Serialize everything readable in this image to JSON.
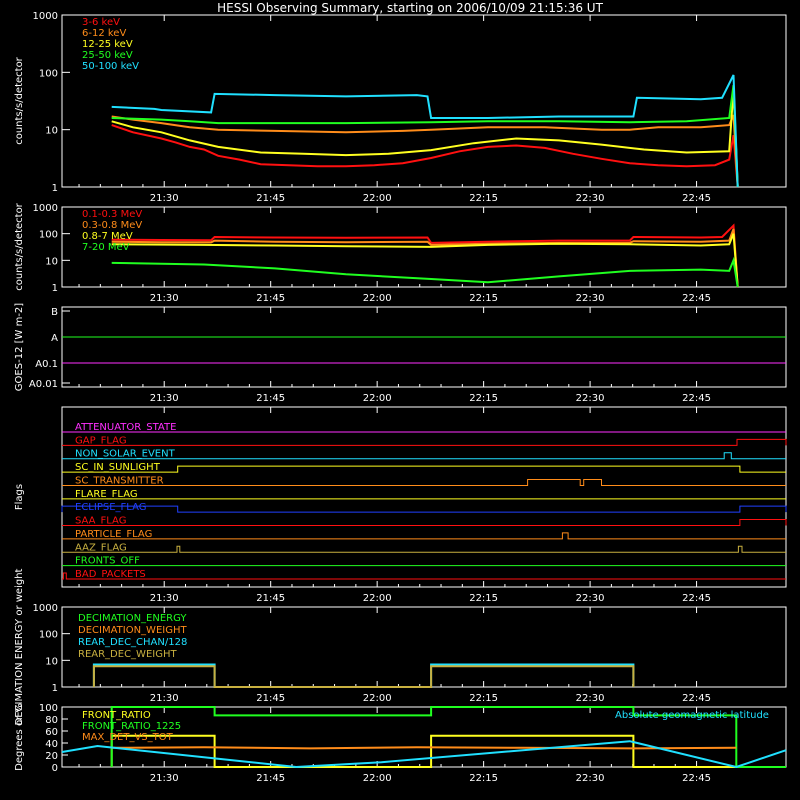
{
  "title": "HESSI Observing Summary, starting on 2006/10/09 21:15:36 UT",
  "time_ticks": [
    "21:30",
    "21:45",
    "22:00",
    "22:15",
    "22:30",
    "22:45"
  ],
  "chart_data": [
    {
      "type": "line",
      "name": "panel-hxr-low",
      "ylabel": "counts/s/detector",
      "yscale": "log",
      "ylim": [
        1,
        1000
      ],
      "y_ticks": [
        "1",
        "10",
        "100",
        "1000"
      ],
      "x_unit": "minutes after 21:15:36 UT",
      "x_range": [
        0,
        102
      ],
      "series": [
        {
          "name": "3-6 keV",
          "color": "#ff1010",
          "x": [
            7,
            10,
            14,
            16,
            18,
            20,
            22,
            25,
            28,
            32,
            36,
            40,
            44,
            48,
            52,
            56,
            60,
            64,
            68,
            72,
            76,
            80,
            84,
            88,
            92,
            94,
            94.6,
            95.2
          ],
          "y": [
            12,
            9,
            7,
            6,
            5,
            4.5,
            3.5,
            3,
            2.5,
            2.4,
            2.3,
            2.3,
            2.4,
            2.6,
            3.2,
            4.2,
            5,
            5.3,
            4.8,
            3.8,
            3.1,
            2.6,
            2.4,
            2.3,
            2.4,
            3,
            8,
            1
          ]
        },
        {
          "name": "6-12 keV",
          "color": "#ff8c1a",
          "x": [
            7,
            10,
            14,
            18,
            22,
            30,
            40,
            48,
            52,
            60,
            68,
            76,
            80,
            84,
            90,
            94,
            94.6,
            95.2
          ],
          "y": [
            17,
            15,
            13,
            11,
            10,
            9.5,
            9,
            9.5,
            10,
            11,
            11,
            10,
            10,
            11,
            11,
            12,
            18,
            1
          ]
        },
        {
          "name": "12-25 keV",
          "color": "#ffff20",
          "x": [
            7,
            10,
            14,
            18,
            22,
            28,
            34,
            40,
            46,
            52,
            58,
            64,
            70,
            76,
            82,
            88,
            94,
            94.6,
            95.2
          ],
          "y": [
            14,
            11,
            9,
            6.5,
            5,
            4,
            3.8,
            3.6,
            3.8,
            4.4,
            5.8,
            7,
            6.5,
            5.5,
            4.5,
            4,
            4.2,
            50,
            1
          ]
        },
        {
          "name": "25-50 keV",
          "color": "#20ff20",
          "x": [
            7,
            14,
            18,
            22,
            30,
            40,
            52,
            60,
            70,
            80,
            88,
            94,
            94.6,
            95.2
          ],
          "y": [
            16,
            15,
            14,
            13,
            13,
            13,
            13.5,
            14,
            14,
            13.5,
            14,
            16,
            60,
            1
          ]
        },
        {
          "name": "50-100 keV",
          "color": "#20e0ff",
          "x": [
            7,
            13,
            14,
            21,
            21.5,
            30,
            40,
            50,
            51.5,
            52,
            60,
            70,
            80,
            80.5,
            81,
            90,
            93,
            94.6,
            95.2
          ],
          "y": [
            25,
            23,
            22,
            20,
            42,
            40,
            38,
            40,
            38,
            16,
            16,
            17,
            17,
            17,
            36,
            34,
            36,
            90,
            1
          ]
        }
      ]
    },
    {
      "type": "line",
      "name": "panel-gamma",
      "ylabel": "counts/s/detector",
      "yscale": "log",
      "ylim": [
        1,
        1000
      ],
      "y_ticks": [
        "1",
        "10",
        "100",
        "1000"
      ],
      "x_unit": "minutes after 21:15:36 UT",
      "x_range": [
        0,
        102
      ],
      "series": [
        {
          "name": "0.1-0.3 MeV",
          "color": "#ff1010",
          "x": [
            7,
            14,
            21,
            21.5,
            30,
            40,
            51.5,
            52,
            60,
            70,
            80,
            80.5,
            90,
            93,
            94.6,
            95.2
          ],
          "y": [
            60,
            58,
            57,
            75,
            72,
            70,
            72,
            45,
            50,
            55,
            55,
            75,
            72,
            75,
            200,
            1
          ]
        },
        {
          "name": "0.3-0.8 MeV",
          "color": "#ff8c1a",
          "x": [
            7,
            14,
            21,
            21.5,
            30,
            40,
            51.5,
            52,
            60,
            70,
            80,
            80.5,
            90,
            94,
            94.6,
            95.2
          ],
          "y": [
            50,
            48,
            47,
            55,
            50,
            48,
            50,
            38,
            42,
            45,
            45,
            52,
            50,
            55,
            150,
            1
          ]
        },
        {
          "name": "0.8-7 MeV",
          "color": "#ffff20",
          "x": [
            7,
            20,
            30,
            40,
            52,
            60,
            70,
            80,
            90,
            94,
            94.6,
            95.2
          ],
          "y": [
            40,
            38,
            36,
            34,
            32,
            38,
            42,
            40,
            36,
            40,
            100,
            1
          ]
        },
        {
          "name": "7-20 MeV",
          "color": "#20ff20",
          "x": [
            7,
            14,
            20,
            30,
            40,
            52,
            60,
            70,
            80,
            90,
            94,
            94.6,
            95.2
          ],
          "y": [
            8,
            7.5,
            7,
            5,
            3,
            2,
            1.5,
            2.5,
            4,
            4.5,
            4,
            10,
            1
          ]
        }
      ]
    },
    {
      "type": "line",
      "name": "panel-goes",
      "ylabel": "GOES-12 [W m-2]",
      "yscale": "log",
      "y_ticks": [
        "A0.01",
        "A0.1",
        "A",
        "B"
      ],
      "x_unit": "minutes after 21:15:36 UT",
      "x_range": [
        0,
        102
      ],
      "series": [
        {
          "name": "GOES long",
          "color": "#20ff20",
          "x": [
            0,
            102
          ],
          "y": [
            "A",
            "A"
          ]
        },
        {
          "name": "GOES short",
          "color": "#ff30ff",
          "x": [
            0,
            102
          ],
          "y": [
            "A0.1",
            "A0.1"
          ]
        }
      ]
    },
    {
      "type": "line",
      "name": "panel-flags",
      "ylabel": "Flags",
      "x_unit": "minutes after 21:15:36 UT",
      "x_range": [
        0,
        102
      ],
      "series": [
        {
          "name": "ATTENUATOR_STATE",
          "color": "#ff30ff",
          "segments": []
        },
        {
          "name": "GAP_FLAG",
          "color": "#ff1010",
          "segments": [
            [
              95.1,
              102
            ]
          ]
        },
        {
          "name": "NON_SOLAR_EVENT",
          "color": "#20e0ff",
          "segments": [
            [
              93.3,
              94.3
            ]
          ]
        },
        {
          "name": "SC_IN_SUNLIGHT",
          "color": "#ffff20",
          "segments": [
            [
              16.3,
              95.5
            ]
          ]
        },
        {
          "name": "SC_TRANSMITTER",
          "color": "#ff8c1a",
          "segments": [
            [
              65.6,
              73
            ],
            [
              73.5,
              76
            ]
          ]
        },
        {
          "name": "FLARE_FLAG",
          "color": "#ffff20",
          "segments": []
        },
        {
          "name": "ECLIPSE_FLAG",
          "color": "#2040ff",
          "segments": [
            [
              0,
              16.3
            ],
            [
              95.5,
              102
            ]
          ]
        },
        {
          "name": "SAA_FLAG",
          "color": "#ff1010",
          "segments": [
            [
              95.5,
              102
            ]
          ]
        },
        {
          "name": "PARTICLE_FLAG",
          "color": "#ff8c1a",
          "segments": [
            [
              70.5,
              71.3
            ]
          ]
        },
        {
          "name": "AAZ_FLAG",
          "color": "#c8b040",
          "segments": [
            [
              16.2,
              16.6
            ],
            [
              95.3,
              95.8
            ]
          ]
        },
        {
          "name": "FRONTS_OFF",
          "color": "#20ff20",
          "segments": []
        },
        {
          "name": "BAD_PACKETS",
          "color": "#ff1010",
          "segments": [
            [
              0.2,
              0.6
            ]
          ]
        }
      ]
    },
    {
      "type": "line",
      "name": "panel-decimation",
      "ylabel": "DECIMATION ENERGY or weight",
      "yscale": "log",
      "ylim": [
        1,
        1000
      ],
      "y_ticks": [
        "1",
        "10",
        "100",
        "1000"
      ],
      "x_unit": "minutes after 21:15:36 UT",
      "x_range": [
        0,
        102
      ],
      "series": [
        {
          "name": "DECIMATION_ENERGY",
          "color": "#20ff20",
          "x": [],
          "y": []
        },
        {
          "name": "DECIMATION_WEIGHT",
          "color": "#ff8c1a",
          "x": [],
          "y": []
        },
        {
          "name": "REAR_DEC_CHAN/128",
          "color": "#20e0ff",
          "x": [
            4.5,
            4.5,
            21.5,
            21.5,
            52,
            52,
            80.5,
            80.5
          ],
          "y": [
            1,
            7,
            7,
            1,
            1,
            7,
            7,
            1
          ]
        },
        {
          "name": "REAR_DEC_WEIGHT",
          "color": "#c8b040",
          "x": [
            4.5,
            4.5,
            21.5,
            21.5,
            52,
            52,
            80.5,
            80.5
          ],
          "y": [
            1,
            6,
            6,
            1,
            1,
            6,
            6,
            1
          ]
        }
      ]
    },
    {
      "type": "line",
      "name": "panel-ratio",
      "ylabel": "Degrees or %",
      "ylim": [
        0,
        100
      ],
      "y_ticks": [
        "0",
        "20",
        "40",
        "60",
        "80",
        "100"
      ],
      "x_unit": "minutes after 21:15:36 UT",
      "x_range": [
        0,
        102
      ],
      "annotation": "Absolute geomagnetic latitude",
      "series": [
        {
          "name": "FRONT_RATIO",
          "color": "#ffff20",
          "x": [
            7,
            7,
            21.5,
            21.5,
            52,
            52,
            80.5,
            80.5,
            95,
            95
          ],
          "y": [
            0,
            52,
            52,
            0,
            0,
            52,
            52,
            0,
            0,
            0
          ]
        },
        {
          "name": "FRONT_RATIO_1225",
          "color": "#20ff20",
          "x": [
            7,
            7,
            21.5,
            21.5,
            52,
            52,
            80.5,
            80.5,
            95,
            95,
            102
          ],
          "y": [
            0,
            100,
            100,
            86,
            86,
            100,
            100,
            86,
            86,
            0,
            0
          ]
        },
        {
          "name": "MAX_DET_VS_TOT",
          "color": "#ff8c1a",
          "x": [
            7,
            20,
            35,
            50,
            65,
            80,
            95
          ],
          "y": [
            32,
            33,
            31,
            33,
            32,
            31,
            32
          ]
        },
        {
          "name": "Absolute geomagnetic latitude",
          "color": "#20e0ff",
          "x": [
            0,
            5,
            33,
            45,
            80,
            95,
            102
          ],
          "y": [
            25,
            35,
            0,
            8,
            43,
            0,
            28
          ]
        }
      ]
    }
  ]
}
